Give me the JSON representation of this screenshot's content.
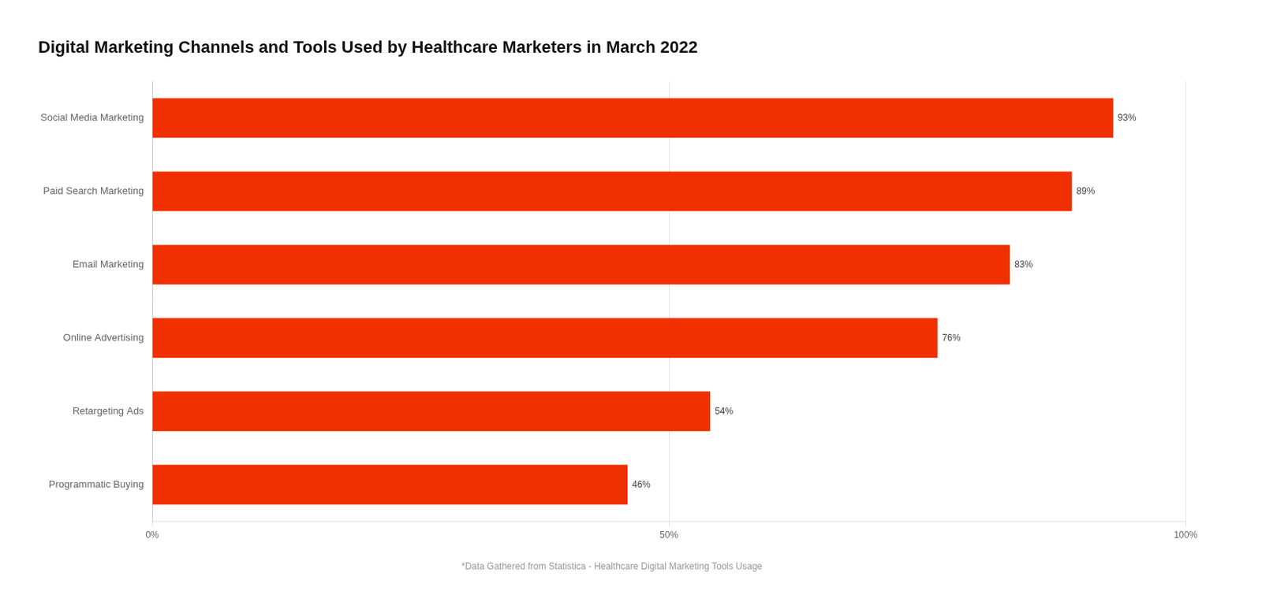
{
  "chart_data": {
    "type": "bar",
    "orientation": "horizontal",
    "title": "Digital Marketing Channels and Tools Used by Healthcare Marketers in March 2022",
    "annotations": [
      "*Data Gathered from Statistica - Healthcare Digital Marketing Tools Usage"
    ],
    "categories": [
      "Social Media Marketing",
      "Paid Search Marketing",
      "Email Marketing",
      "Online Advertising",
      "Retargeting Ads",
      "Programmatic Buying"
    ],
    "values": [
      93,
      89,
      83,
      76,
      54,
      46
    ],
    "value_labels": [
      "93%",
      "89%",
      "83%",
      "76%",
      "54%",
      "46%"
    ],
    "data_labels": true,
    "color": "#f03000",
    "xlim": [
      0,
      100
    ],
    "xticks": [
      {
        "value": 0,
        "label": "0%"
      },
      {
        "value": 50,
        "label": "50%"
      },
      {
        "value": 100,
        "label": "100%"
      }
    ],
    "grid": true
  }
}
